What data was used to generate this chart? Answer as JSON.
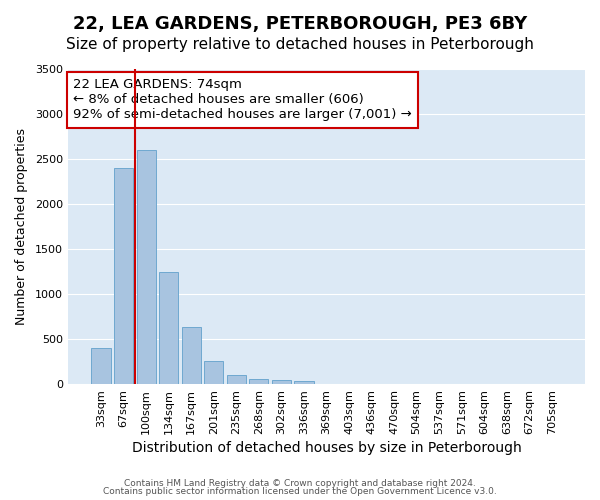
{
  "title1": "22, LEA GARDENS, PETERBOROUGH, PE3 6BY",
  "title2": "Size of property relative to detached houses in Peterborough",
  "xlabel": "Distribution of detached houses by size in Peterborough",
  "ylabel": "Number of detached properties",
  "footnote1": "Contains HM Land Registry data © Crown copyright and database right 2024.",
  "footnote2": "Contains public sector information licensed under the Open Government Licence v3.0.",
  "bar_labels": [
    "33sqm",
    "67sqm",
    "100sqm",
    "134sqm",
    "167sqm",
    "201sqm",
    "235sqm",
    "268sqm",
    "302sqm",
    "336sqm",
    "369sqm",
    "403sqm",
    "436sqm",
    "470sqm",
    "504sqm",
    "537sqm",
    "571sqm",
    "604sqm",
    "638sqm",
    "672sqm",
    "705sqm"
  ],
  "bar_values": [
    400,
    2400,
    2600,
    1250,
    640,
    260,
    100,
    55,
    45,
    35,
    0,
    0,
    0,
    0,
    0,
    0,
    0,
    0,
    0,
    0,
    0
  ],
  "bar_color": "#a8c4e0",
  "bar_edge_color": "#6fa8d0",
  "background_color": "#dce9f5",
  "vline_pos": 1.5,
  "vline_color": "#cc0000",
  "ylim": [
    0,
    3500
  ],
  "yticks": [
    0,
    500,
    1000,
    1500,
    2000,
    2500,
    3000,
    3500
  ],
  "annotation_title": "22 LEA GARDENS: 74sqm",
  "annotation_line1": "← 8% of detached houses are smaller (606)",
  "annotation_line2": "92% of semi-detached houses are larger (7,001) →",
  "annotation_box_color": "#ffffff",
  "annotation_box_edge_color": "#cc0000",
  "title1_fontsize": 13,
  "title2_fontsize": 11,
  "xlabel_fontsize": 10,
  "ylabel_fontsize": 9,
  "tick_fontsize": 8,
  "annotation_fontsize": 9.5
}
